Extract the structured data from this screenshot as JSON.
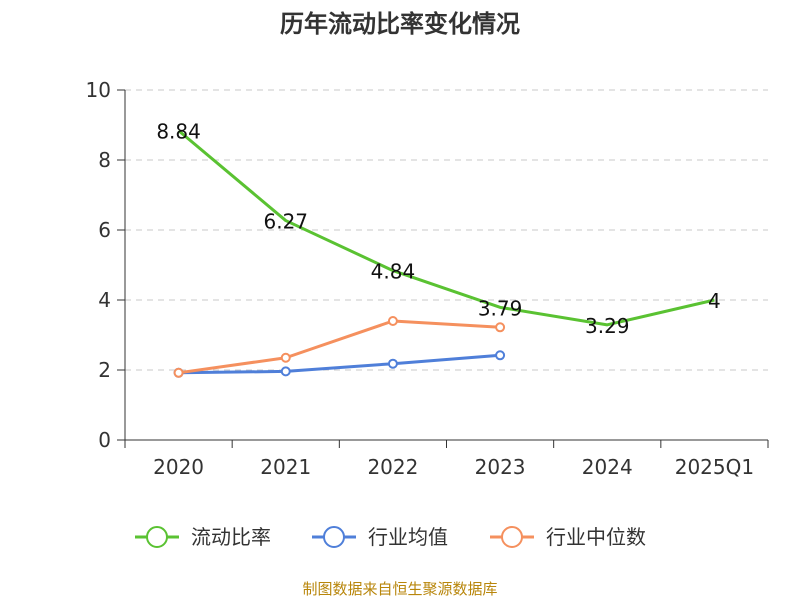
{
  "chart_data": {
    "type": "line",
    "title": "历年流动比率变化情况",
    "categories": [
      "2020",
      "2021",
      "2022",
      "2023",
      "2024",
      "2025Q1"
    ],
    "ylim": [
      0,
      10
    ],
    "yticks": [
      "0",
      "2",
      "4",
      "6",
      "8",
      "10"
    ],
    "grid": true,
    "legend_position": "bottom",
    "series": [
      {
        "name": "流动比率",
        "color": "#5ac232",
        "values": [
          8.84,
          6.27,
          4.84,
          3.79,
          3.29,
          4
        ],
        "labels": [
          "8.84",
          "6.27",
          "4.84",
          "3.79",
          "3.29",
          "4"
        ]
      },
      {
        "name": "行业均值",
        "color": "#4f7fd9",
        "values": [
          1.92,
          1.96,
          2.18,
          2.42,
          null,
          null
        ]
      },
      {
        "name": "行业中位数",
        "color": "#f5905e",
        "values": [
          1.92,
          2.35,
          3.4,
          3.22,
          null,
          null
        ]
      }
    ],
    "source": "制图数据来自恒生聚源数据库"
  }
}
